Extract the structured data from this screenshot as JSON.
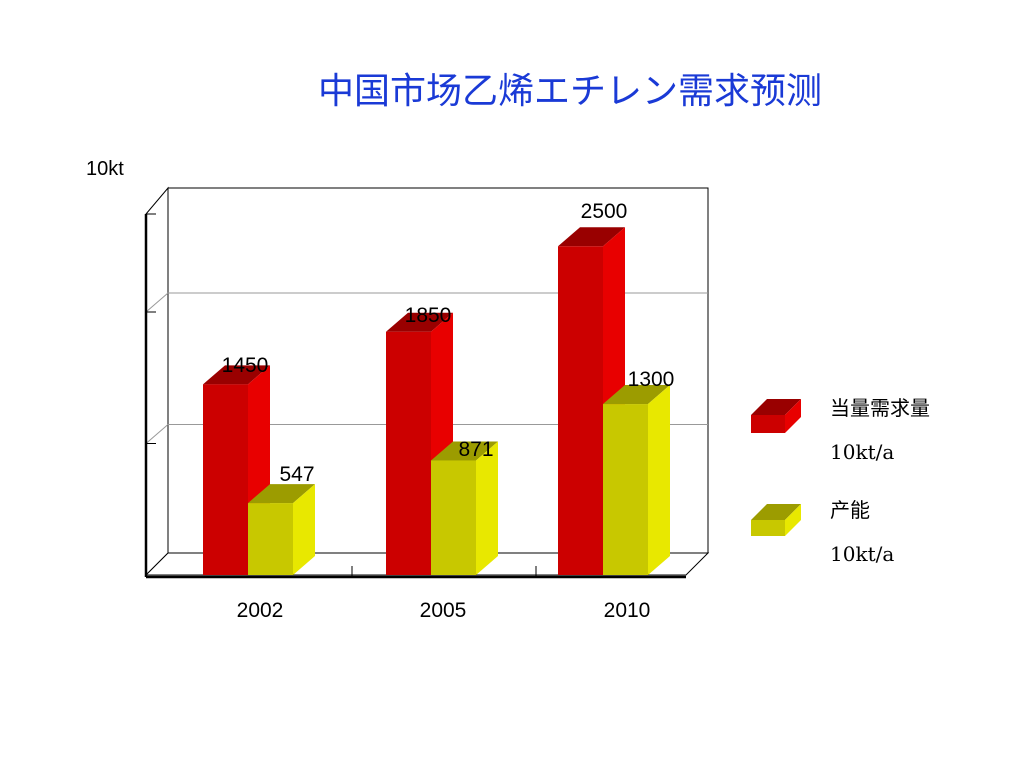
{
  "chart_data": {
    "type": "bar",
    "title": "中国市场乙烯エチレン需求预测",
    "ylabel": "10kt",
    "xlabel": "",
    "ylim": [
      0,
      2900
    ],
    "categories": [
      "2002",
      "2005",
      "2010"
    ],
    "series": [
      {
        "name": "当量需求量",
        "unit": "10kt/a",
        "values": [
          1450,
          1850,
          2500
        ],
        "color": "#d40000"
      },
      {
        "name": "产能",
        "unit": "10kt/a",
        "values": [
          547,
          871,
          1300
        ],
        "color": "#d4d400"
      }
    ],
    "grid": true,
    "legend": "right",
    "data_labels": [
      "1450",
      "1850",
      "2500",
      "547",
      "871",
      "1300"
    ]
  }
}
